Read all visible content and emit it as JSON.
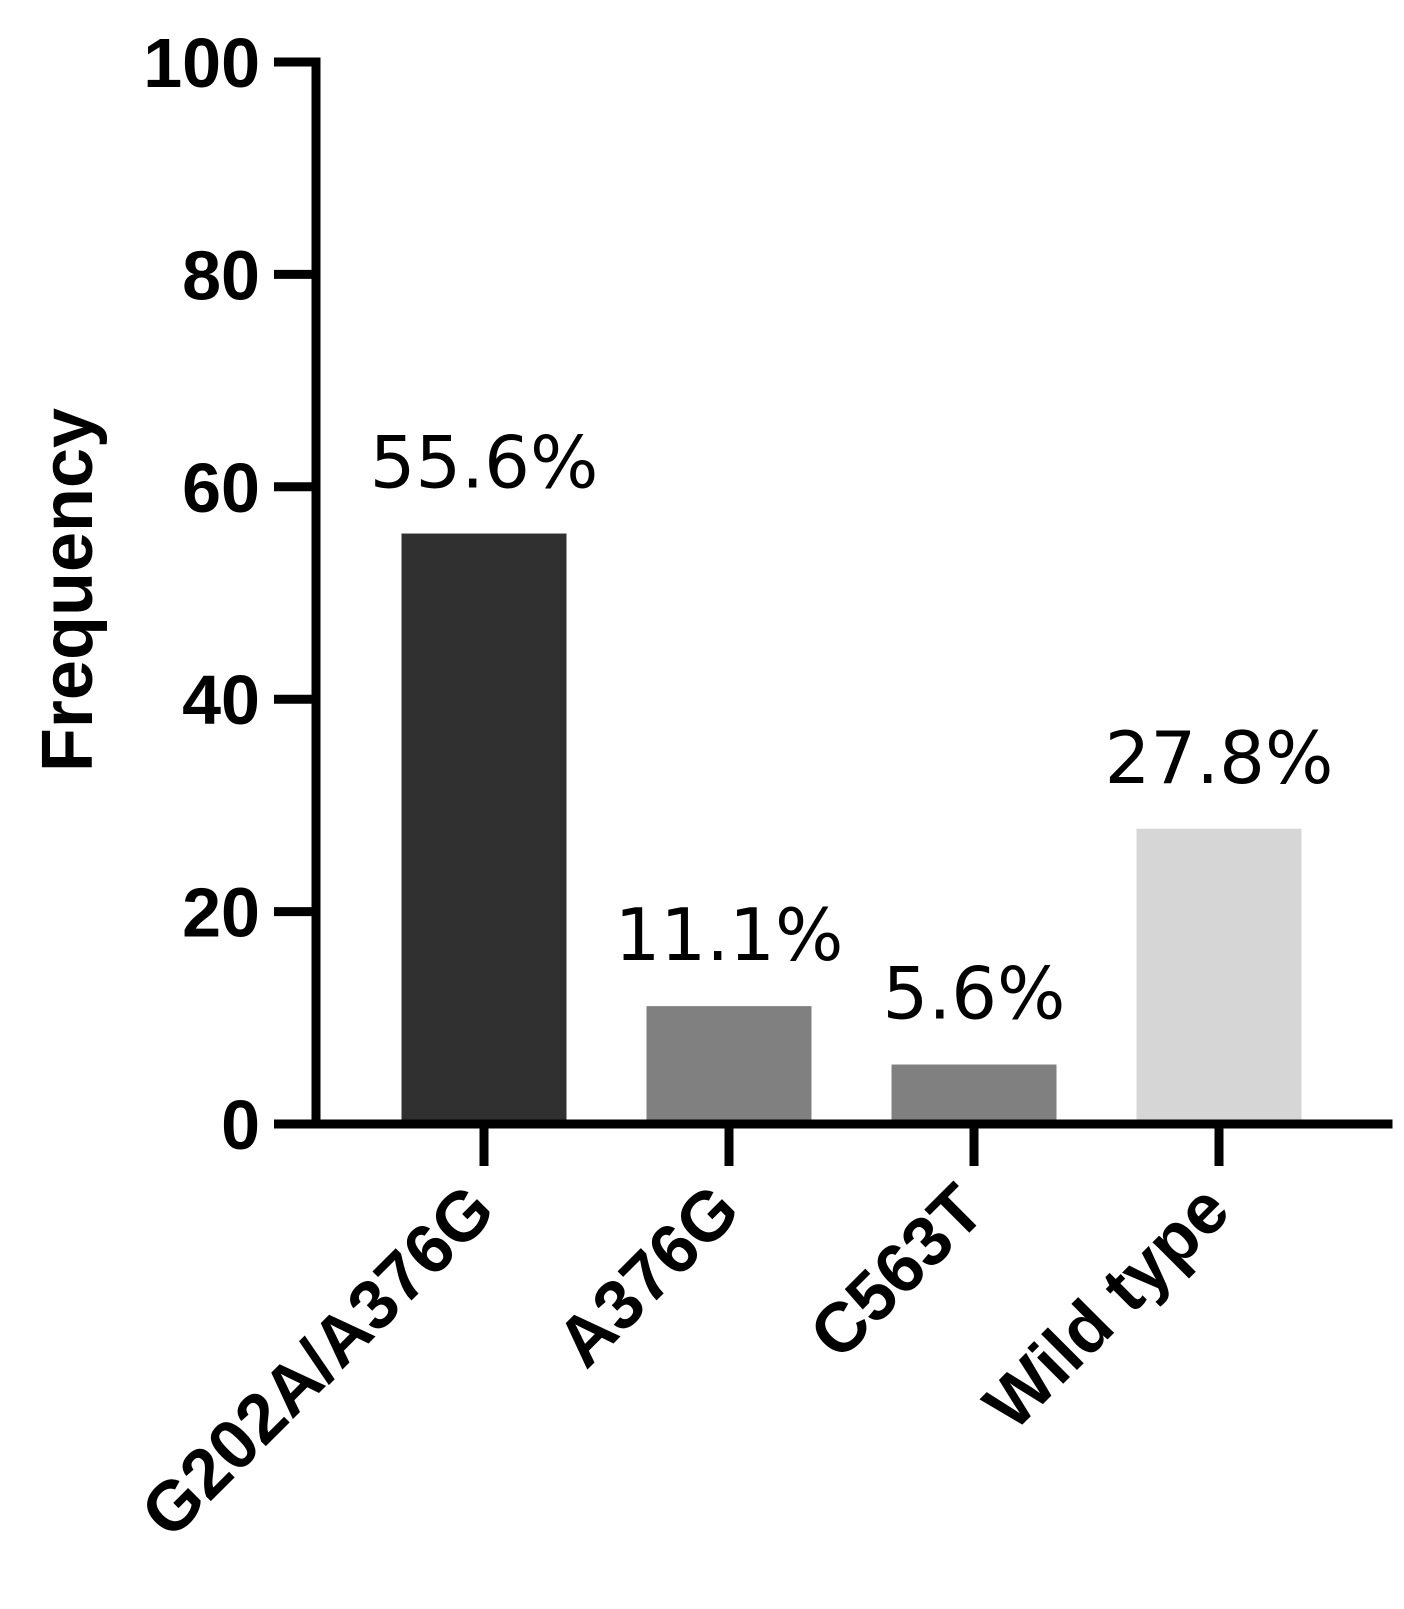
{
  "chart_data": {
    "type": "bar",
    "title": "",
    "xlabel": "",
    "ylabel": "Frequency",
    "ylim": [
      0,
      100
    ],
    "yticks": [
      0,
      20,
      40,
      60,
      80,
      100
    ],
    "grid": false,
    "legend": "none",
    "categories": [
      "G202A/A376G",
      "A376G",
      "C563T",
      "Wild type"
    ],
    "values": [
      55.6,
      11.1,
      5.6,
      27.8
    ],
    "data_labels": [
      "55.6%",
      "11.1%",
      "5.6%",
      "27.8%"
    ],
    "colors": [
      "#303030",
      "#808080",
      "#808080",
      "#d6d6d6"
    ]
  }
}
